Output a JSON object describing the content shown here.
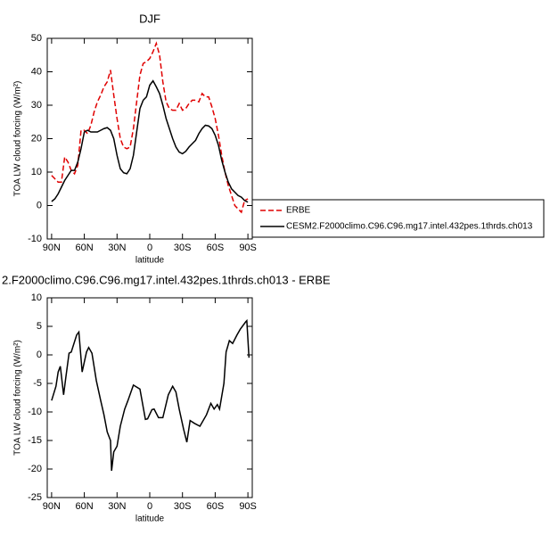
{
  "chart_data": [
    {
      "type": "line",
      "title": "DJF",
      "xlabel": "latitude",
      "ylabel": "TOA LW cloud forcing (W/m²)",
      "x": [
        90,
        87,
        84,
        81,
        78,
        75,
        72,
        69,
        66,
        63,
        60,
        57,
        54,
        51,
        48,
        45,
        42,
        39,
        36,
        33,
        30,
        27,
        24,
        21,
        18,
        15,
        12,
        9,
        6,
        3,
        0,
        -3,
        -6,
        -9,
        -12,
        -15,
        -18,
        -21,
        -24,
        -27,
        -30,
        -33,
        -36,
        -39,
        -42,
        -45,
        -48,
        -51,
        -54,
        -57,
        -60,
        -63,
        -66,
        -69,
        -72,
        -75,
        -78,
        -81,
        -84,
        -87,
        -90
      ],
      "xlim": [
        94,
        -94
      ],
      "xticks": [
        {
          "value": 90,
          "label": "90N"
        },
        {
          "value": 60,
          "label": "60N"
        },
        {
          "value": 30,
          "label": "30N"
        },
        0,
        {
          "value": -30,
          "label": "30S"
        },
        {
          "value": -60,
          "label": "60S"
        },
        {
          "value": -90,
          "label": "90S"
        }
      ],
      "ylim": [
        -10,
        50
      ],
      "yticks": [
        -10,
        0,
        10,
        20,
        30,
        40,
        50
      ],
      "legend": "right",
      "series": [
        {
          "name": "ERBE",
          "color": "#e00000",
          "dash": true,
          "values": [
            9,
            8,
            7,
            7,
            14.5,
            13,
            10.5,
            9.5,
            12,
            22.5,
            22.5,
            21.5,
            24,
            28,
            31,
            33,
            35.5,
            37,
            40.5,
            33,
            26,
            20,
            17.5,
            17,
            17.5,
            23,
            31,
            39,
            42.5,
            43,
            44,
            46,
            48.5,
            45,
            37,
            31,
            29,
            28.5,
            28.5,
            30.5,
            28.5,
            29,
            30.5,
            31.5,
            31.5,
            31,
            33.5,
            32.5,
            32.5,
            29.5,
            26,
            21,
            15,
            10,
            6,
            3,
            0,
            -1,
            -2,
            1.5,
            2
          ]
        },
        {
          "name": "CESM2.F2000climo.C96.C96.mg17.intel.432pes.1thrds.ch013",
          "color": "#000000",
          "dash": false,
          "values": [
            1.2,
            2,
            3.5,
            5.5,
            7.5,
            9,
            10.5,
            10.5,
            13,
            17,
            22,
            22.5,
            22,
            22,
            22,
            22.5,
            23,
            23.3,
            22.5,
            20,
            15,
            11,
            9.8,
            9.5,
            11,
            15,
            22,
            29,
            31.5,
            32.5,
            36,
            37.3,
            35.5,
            33.5,
            30,
            26,
            23,
            20,
            17.5,
            16,
            15.5,
            16.2,
            17.5,
            18.5,
            19.5,
            21.5,
            23,
            24,
            23.8,
            23,
            21,
            18,
            13.5,
            10,
            7,
            5,
            4,
            3,
            2.5,
            1.5,
            1
          ]
        }
      ]
    },
    {
      "type": "line",
      "title": "2.F2000climo.C96.C96.mg17.intel.432pes.1thrds.ch013 - ERBE",
      "xlabel": "latitude",
      "ylabel": "TOA LW cloud forcing (W/m²)",
      "x": [
        90,
        86,
        84,
        82,
        79,
        77,
        74,
        72,
        67,
        65,
        62,
        58,
        56,
        53,
        49,
        45,
        42,
        39,
        36,
        35,
        33,
        30,
        27,
        23,
        20,
        15,
        9,
        4,
        2,
        -2,
        -4,
        -8,
        -12,
        -17,
        -21,
        -24,
        -27,
        -31,
        -34,
        -37,
        -41,
        -46,
        -52,
        -56,
        -59,
        -62,
        -64,
        -68,
        -70,
        -73,
        -76,
        -80,
        -83,
        -88,
        -89,
        -91
      ],
      "xlim": [
        94,
        -94
      ],
      "xticks": [
        {
          "value": 90,
          "label": "90N"
        },
        {
          "value": 60,
          "label": "60N"
        },
        {
          "value": 30,
          "label": "30N"
        },
        0,
        {
          "value": -30,
          "label": "30S"
        },
        {
          "value": -60,
          "label": "60S"
        },
        {
          "value": -90,
          "label": "90S"
        }
      ],
      "ylim": [
        -25,
        10
      ],
      "yticks": [
        -25,
        -20,
        -15,
        -10,
        -5,
        0,
        5,
        10
      ],
      "series": [
        {
          "color": "#000000",
          "dash": false,
          "values": [
            -8,
            -5.5,
            -3,
            -2,
            -7,
            -4,
            0.3,
            0.5,
            3.5,
            4,
            -3,
            0.5,
            1.3,
            0.3,
            -4.5,
            -8,
            -10.5,
            -13.5,
            -15,
            -20.3,
            -17,
            -16,
            -12.5,
            -9.5,
            -8,
            -5.3,
            -6,
            -11.3,
            -11.2,
            -9.6,
            -9.5,
            -11,
            -11,
            -7,
            -5.5,
            -6.5,
            -9.5,
            -13,
            -15.3,
            -11.5,
            -12,
            -12.5,
            -10.5,
            -8.5,
            -9.5,
            -8.7,
            -9.5,
            -5,
            0.5,
            2.5,
            2,
            3.5,
            4.5,
            5.8,
            6,
            -0.5
          ]
        }
      ]
    }
  ]
}
